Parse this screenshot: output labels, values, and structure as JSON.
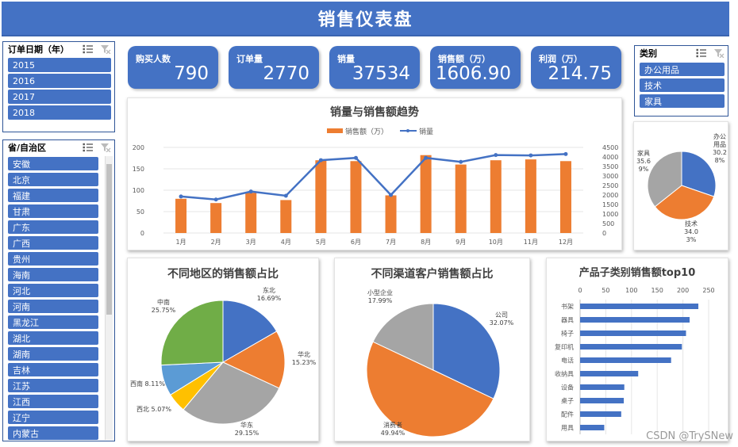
{
  "dashboard": {
    "title": "销售仪表盘"
  },
  "slicers": {
    "year": {
      "title": "订单日期（年）",
      "items": [
        "2015",
        "2016",
        "2017",
        "2018"
      ]
    },
    "province": {
      "title": "省/自治区",
      "items": [
        "安徽",
        "北京",
        "福建",
        "甘肃",
        "广东",
        "广西",
        "贵州",
        "海南",
        "河北",
        "河南",
        "黑龙江",
        "湖北",
        "湖南",
        "吉林",
        "江苏",
        "江西",
        "辽宁",
        "内蒙古"
      ]
    },
    "category": {
      "title": "类别",
      "items": [
        "办公用品",
        "技术",
        "家具"
      ]
    }
  },
  "kpis": [
    {
      "label": "购买人数",
      "value": "790"
    },
    {
      "label": "订单量",
      "value": "2770"
    },
    {
      "label": "销量",
      "value": "37534"
    },
    {
      "label": "销售额（万）",
      "value": "1606.90"
    },
    {
      "label": "利润（万）",
      "value": "214.75"
    }
  ],
  "charts": {
    "trend": {
      "title": "销量与销售额趋势"
    },
    "category_pie": {
      "title": ""
    },
    "region": {
      "title": "不同地区的销售额占比"
    },
    "channel": {
      "title": "不同渠道客户销售额占比"
    },
    "subcat": {
      "title": "产品子类别销售额top10"
    }
  },
  "chart_data": [
    {
      "id": "trend",
      "type": "bar",
      "title": "销量与销售额趋势",
      "categories": [
        "1月",
        "2月",
        "3月",
        "4月",
        "5月",
        "6月",
        "7月",
        "8月",
        "9月",
        "10月",
        "11月",
        "12月"
      ],
      "series": [
        {
          "name": "销售额（万）",
          "type": "bar",
          "axis": "left",
          "values": [
            80,
            70,
            94,
            77,
            170,
            168,
            88,
            182,
            160,
            170,
            172,
            168
          ],
          "color": "#ed7d31"
        },
        {
          "name": "销量",
          "type": "line",
          "axis": "right",
          "values": [
            1920,
            1760,
            2180,
            1960,
            3830,
            3950,
            2000,
            3950,
            3740,
            4100,
            4080,
            4150
          ],
          "color": "#4472c4"
        }
      ],
      "ylim_left": [
        0,
        200
      ],
      "yticks_left": [
        0,
        50,
        100,
        150,
        200
      ],
      "ylim_right": [
        0,
        4500
      ],
      "yticks_right": [
        0,
        500,
        1000,
        1500,
        2000,
        2500,
        3000,
        3500,
        4000,
        4500
      ],
      "legend": "top"
    },
    {
      "id": "category_pie",
      "type": "pie",
      "slices": [
        {
          "label": "办公用品",
          "value": 30.28,
          "text": "办公\n用品\n30.2\n8%",
          "color": "#4472c4"
        },
        {
          "label": "技术",
          "value": 34.03,
          "text": "技术\n34.0\n3%",
          "color": "#ed7d31"
        },
        {
          "label": "家具",
          "value": 35.69,
          "text": "家具\n35.6\n9%",
          "color": "#a5a5a5"
        }
      ]
    },
    {
      "id": "region",
      "type": "pie",
      "title": "不同地区的销售额占比",
      "slices": [
        {
          "label": "东北",
          "value": 16.69,
          "text": "16.69%",
          "color": "#4472c4"
        },
        {
          "label": "华北",
          "value": 15.23,
          "text": "15.23%",
          "color": "#ed7d31"
        },
        {
          "label": "华东",
          "value": 29.15,
          "text": "29.15%",
          "color": "#a5a5a5"
        },
        {
          "label": "西北",
          "value": 5.07,
          "text": "5.07%",
          "color": "#ffc000"
        },
        {
          "label": "西南",
          "value": 8.11,
          "text": "8.11%",
          "color": "#5b9bd5"
        },
        {
          "label": "中南",
          "value": 25.75,
          "text": "25.75%",
          "color": "#70ad47"
        }
      ]
    },
    {
      "id": "channel",
      "type": "pie",
      "title": "不同渠道客户销售额占比",
      "slices": [
        {
          "label": "公司",
          "value": 32.07,
          "text": "32.07%",
          "color": "#4472c4"
        },
        {
          "label": "消费者",
          "value": 49.94,
          "text": "49.94%",
          "color": "#ed7d31"
        },
        {
          "label": "小型企业",
          "value": 17.99,
          "text": "17.99%",
          "color": "#a5a5a5"
        }
      ]
    },
    {
      "id": "subcat",
      "type": "bar",
      "orientation": "horizontal",
      "title": "产品子类别销售额top10",
      "categories": [
        "书架",
        "器具",
        "椅子",
        "复印机",
        "电话",
        "收纳具",
        "设备",
        "桌子",
        "配件",
        "用具"
      ],
      "values": [
        230,
        213,
        206,
        198,
        177,
        113,
        86,
        85,
        80,
        47
      ],
      "xlim": [
        0,
        250
      ],
      "xticks": [
        0,
        50,
        100,
        150,
        200,
        250
      ],
      "color": "#4472c4"
    }
  ],
  "watermark": "CSDN @TrySNew"
}
